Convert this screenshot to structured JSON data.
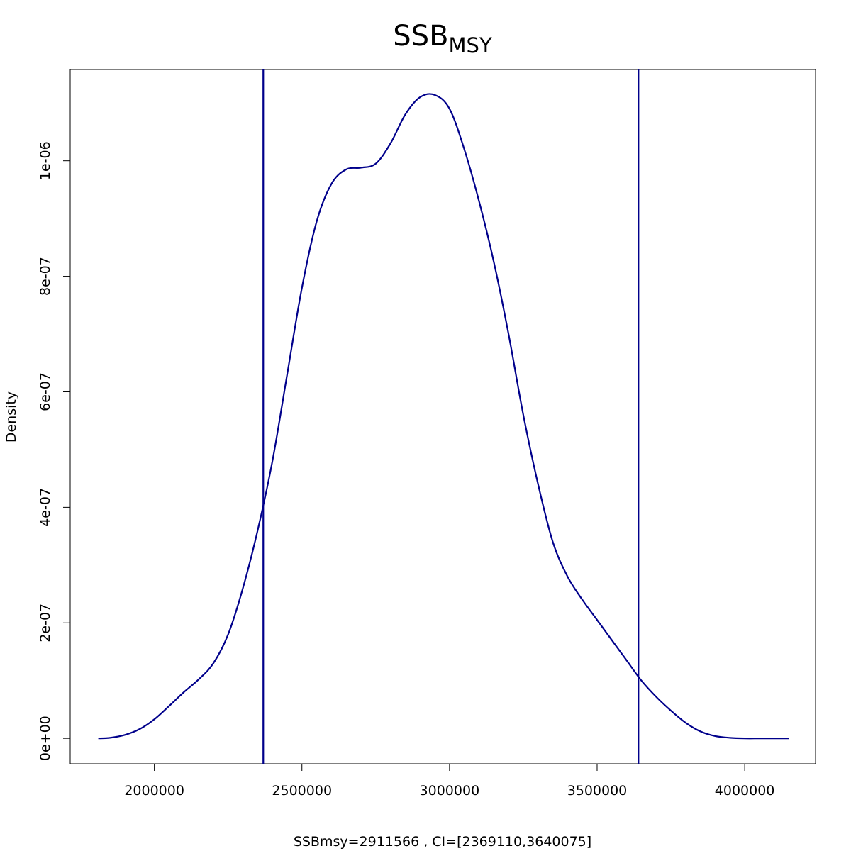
{
  "chart_data": {
    "type": "line",
    "title": "SSB",
    "title_subscript": "MSY",
    "xlabel": "SSBmsy=2911566 , CI=[2369110,3640075]",
    "ylabel": "Density",
    "xlim": [
      1715000,
      4240000
    ],
    "ylim": [
      -4.4e-08,
      1.158e-06
    ],
    "x_ticks": [
      2000000,
      2500000,
      3000000,
      3500000,
      4000000
    ],
    "x_tick_labels": [
      "2000000",
      "2500000",
      "3000000",
      "3500000",
      "4000000"
    ],
    "y_ticks": [
      0,
      2e-07,
      4e-07,
      6e-07,
      8e-07,
      1e-06
    ],
    "y_tick_labels": [
      "0e+00",
      "2e-07",
      "4e-07",
      "6e-07",
      "8e-07",
      "1e-06"
    ],
    "grid": false,
    "line_color": "#00008B",
    "series": [
      {
        "x": [
          1810000,
          1850000,
          1900000,
          1950000,
          2000000,
          2050000,
          2100000,
          2150000,
          2200000,
          2250000,
          2300000,
          2350000,
          2400000,
          2450000,
          2500000,
          2550000,
          2600000,
          2650000,
          2700000,
          2750000,
          2800000,
          2850000,
          2900000,
          2950000,
          3000000,
          3050000,
          3100000,
          3150000,
          3200000,
          3250000,
          3300000,
          3350000,
          3400000,
          3450000,
          3500000,
          3550000,
          3600000,
          3650000,
          3700000,
          3750000,
          3800000,
          3850000,
          3900000,
          3950000,
          4000000,
          4050000,
          4100000,
          4150000
        ],
        "y": [
          0.0,
          1e-09,
          6e-09,
          1.6e-08,
          3.3e-08,
          5.6e-08,
          8e-08,
          1.02e-07,
          1.3e-07,
          1.8e-07,
          2.6e-07,
          3.6e-07,
          4.8e-07,
          6.3e-07,
          7.8e-07,
          8.95e-07,
          9.6e-07,
          9.85e-07,
          9.88e-07,
          9.95e-07,
          1.03e-06,
          1.08e-06,
          1.11e-06,
          1.114e-06,
          1.09e-06,
          1.02e-06,
          9.3e-07,
          8.25e-07,
          7e-07,
          5.6e-07,
          4.4e-07,
          3.4e-07,
          2.8e-07,
          2.4e-07,
          2.05e-07,
          1.7e-07,
          1.35e-07,
          1e-07,
          7.2e-08,
          4.8e-08,
          2.7e-08,
          1.2e-08,
          4e-09,
          1e-09,
          0.0,
          0.0,
          0.0,
          0.0
        ]
      }
    ],
    "vlines": [
      2369110,
      3640075
    ]
  }
}
